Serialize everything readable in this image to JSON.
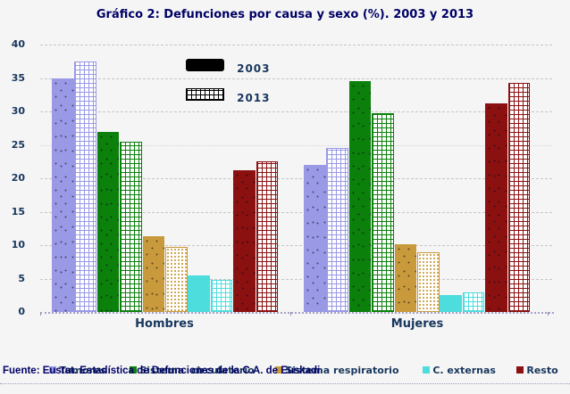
{
  "title": "Gráfico 2: Defunciones por causa y sexo (%). 2003 y 2013",
  "source": "Fuente: Eustat. Estadística de Defunciones de la C.A. de Euskadi",
  "colors": {
    "background": "#f5f5f5",
    "title_text": "#000066",
    "axis_text": "#17365d",
    "gridline": "#c6c6c6",
    "baseline": "#a3a1c6"
  },
  "chart_data": {
    "type": "bar",
    "title": "Gráfico 2: Defunciones por causa y sexo (%). 2003 y 2013",
    "groups": [
      "Hombres",
      "Mujeres"
    ],
    "categories": [
      {
        "name": "Tumores",
        "color": "#9999e6"
      },
      {
        "name": "Sistema  circulatorio",
        "color": "#0b800b"
      },
      {
        "name": "Sistema respiratorio",
        "color": "#c89a3c"
      },
      {
        "name": "C. externas",
        "color": "#4ddddd"
      },
      {
        "name": "Resto",
        "color": "#8b1010"
      }
    ],
    "series": [
      {
        "name": "2003",
        "pattern": "solid",
        "swatch_color": "#000000",
        "values": [
          [
            35.0,
            27.0,
            11.3,
            5.5,
            21.2
          ],
          [
            22.0,
            34.5,
            10.1,
            2.5,
            31.2
          ]
        ]
      },
      {
        "name": "2013",
        "pattern": "crosshatch",
        "swatch_color": "#000000",
        "values": [
          [
            37.5,
            25.5,
            9.8,
            4.8,
            22.6
          ],
          [
            24.6,
            29.8,
            9.0,
            2.9,
            34.3
          ]
        ]
      }
    ],
    "ylabel": "",
    "xlabel": "",
    "ylim": [
      0,
      40
    ],
    "yticks": [
      0,
      5,
      10,
      15,
      20,
      25,
      30,
      35,
      40
    ],
    "grid": "horizontal-dashed",
    "legend_position": "inside-top-left and bottom"
  }
}
